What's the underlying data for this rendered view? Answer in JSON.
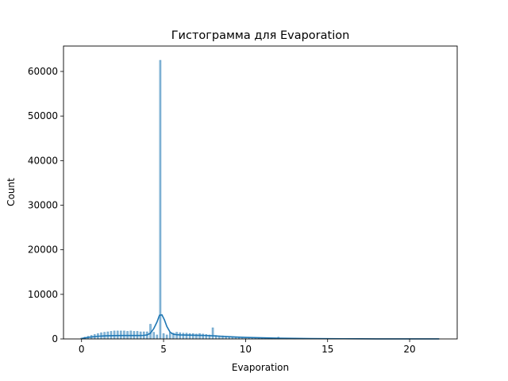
{
  "chart_data": {
    "type": "bar",
    "title": "Гистограмма для Evaporation",
    "xlabel": "Evaporation",
    "ylabel": "Count",
    "xlim": [
      -1.1,
      22.9
    ],
    "ylim": [
      0,
      65700
    ],
    "xticks": [
      0,
      5,
      10,
      15,
      20
    ],
    "yticks": [
      0,
      10000,
      20000,
      30000,
      40000,
      50000,
      60000
    ],
    "grid": false,
    "legend": "none",
    "bar_color": "#1f77b4",
    "kde_color": "#1f77b4",
    "bin_width": 0.1,
    "histogram": {
      "x": [
        0.0,
        0.2,
        0.4,
        0.6,
        0.8,
        1.0,
        1.2,
        1.4,
        1.6,
        1.8,
        2.0,
        2.2,
        2.4,
        2.6,
        2.8,
        3.0,
        3.2,
        3.4,
        3.6,
        3.8,
        4.0,
        4.2,
        4.4,
        4.6,
        4.8,
        5.0,
        5.2,
        5.4,
        5.6,
        5.8,
        6.0,
        6.2,
        6.4,
        6.6,
        6.8,
        7.0,
        7.2,
        7.4,
        7.6,
        7.8,
        8.0,
        8.2,
        8.4,
        8.6,
        8.8,
        9.0,
        9.2,
        9.4,
        9.6,
        9.8,
        10.0,
        10.2,
        10.4,
        10.6,
        10.8,
        11.0,
        11.2,
        11.4,
        11.6,
        11.8,
        12.0,
        12.5,
        13.0,
        13.5,
        14.0,
        14.5,
        15.0,
        16.0,
        17.0,
        18.0,
        19.0,
        20.0,
        21.0,
        21.8
      ],
      "counts": [
        200,
        400,
        600,
        800,
        1000,
        1200,
        1400,
        1500,
        1600,
        1700,
        1800,
        1800,
        1800,
        1800,
        1700,
        1800,
        1700,
        1700,
        1600,
        1600,
        1600,
        3300,
        1500,
        900,
        62500,
        1200,
        900,
        1400,
        1300,
        1500,
        1400,
        1300,
        1300,
        1200,
        1200,
        1100,
        1200,
        1100,
        1000,
        900,
        2500,
        800,
        700,
        700,
        600,
        500,
        500,
        500,
        400,
        400,
        400,
        300,
        300,
        300,
        200,
        200,
        200,
        200,
        150,
        150,
        400,
        100,
        100,
        80,
        60,
        50,
        40,
        30,
        25,
        20,
        15,
        10,
        5,
        5
      ]
    },
    "kde": {
      "x": [
        0.0,
        0.5,
        1.0,
        1.5,
        2.0,
        2.5,
        3.0,
        3.5,
        3.8,
        4.0,
        4.2,
        4.4,
        4.6,
        4.75,
        4.9,
        5.05,
        5.2,
        5.4,
        5.6,
        5.8,
        6.0,
        6.5,
        7.0,
        7.5,
        8.0,
        8.5,
        9.0,
        9.5,
        10.0,
        11.0,
        12.0,
        13.0,
        14.0,
        15.0,
        16.0,
        17.0,
        18.0,
        19.0,
        20.0,
        21.0,
        21.8
      ],
      "y": [
        100,
        400,
        600,
        700,
        750,
        760,
        760,
        760,
        800,
        900,
        1300,
        2300,
        3800,
        5300,
        5400,
        4300,
        2800,
        1500,
        1050,
        950,
        900,
        850,
        820,
        780,
        700,
        600,
        500,
        420,
        350,
        250,
        180,
        130,
        90,
        60,
        45,
        30,
        20,
        15,
        10,
        5,
        5
      ]
    }
  }
}
